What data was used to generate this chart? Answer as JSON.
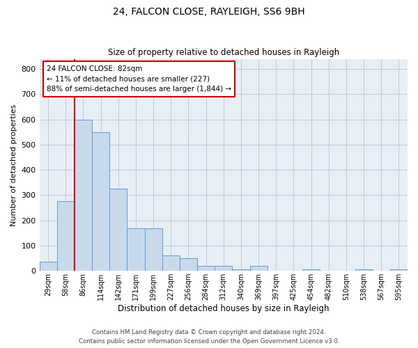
{
  "title1": "24, FALCON CLOSE, RAYLEIGH, SS6 9BH",
  "title2": "Size of property relative to detached houses in Rayleigh",
  "xlabel": "Distribution of detached houses by size in Rayleigh",
  "ylabel": "Number of detached properties",
  "bar_color": "#c9d9ec",
  "bar_edge_color": "#5b9bd5",
  "grid_color": "#c0c8d8",
  "bg_color": "#e8eef5",
  "categories": [
    "29sqm",
    "58sqm",
    "86sqm",
    "114sqm",
    "142sqm",
    "171sqm",
    "199sqm",
    "227sqm",
    "256sqm",
    "284sqm",
    "312sqm",
    "340sqm",
    "369sqm",
    "397sqm",
    "425sqm",
    "454sqm",
    "482sqm",
    "510sqm",
    "538sqm",
    "567sqm",
    "595sqm"
  ],
  "values": [
    37,
    277,
    600,
    550,
    325,
    170,
    170,
    60,
    50,
    20,
    20,
    5,
    20,
    0,
    0,
    5,
    0,
    0,
    5,
    0,
    5
  ],
  "vline_color": "#cc0000",
  "annotation_text": "24 FALCON CLOSE: 82sqm\n← 11% of detached houses are smaller (227)\n88% of semi-detached houses are larger (1,844) →",
  "annotation_box_color": "white",
  "annotation_box_edge": "#cc0000",
  "ylim": [
    0,
    840
  ],
  "yticks": [
    0,
    100,
    200,
    300,
    400,
    500,
    600,
    700,
    800
  ],
  "footer1": "Contains HM Land Registry data © Crown copyright and database right 2024.",
  "footer2": "Contains public sector information licensed under the Open Government Licence v3.0."
}
